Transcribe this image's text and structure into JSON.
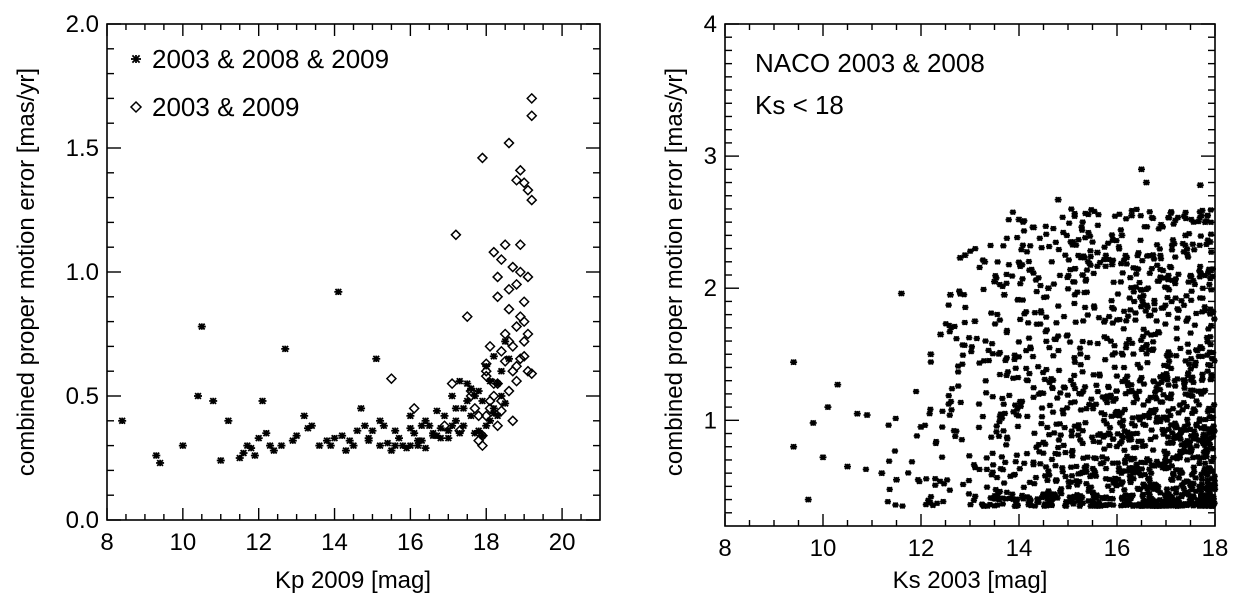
{
  "chart_data": [
    {
      "type": "scatter",
      "xlabel": "Kp 2009 [mag]",
      "ylabel": "combined proper motion error [mas/yr]",
      "xlim": [
        8,
        21
      ],
      "ylim": [
        0,
        2
      ],
      "xticks": [
        "8",
        "10",
        "12",
        "14",
        "16",
        "18",
        "20"
      ],
      "yticks": [
        "0.0",
        "0.5",
        "1.0",
        "1.5",
        "2.0"
      ],
      "legend": [
        "2003 & 2008 & 2009",
        "2003 & 2009"
      ],
      "legend_position": "top-left",
      "series": [
        {
          "name": "2003 & 2008 & 2009",
          "marker": "asterisk",
          "x": [
            8.4,
            9.3,
            9.4,
            10.0,
            10.4,
            10.5,
            10.8,
            11.0,
            11.2,
            11.6,
            11.7,
            11.9,
            12.1,
            12.2,
            12.4,
            12.6,
            12.7,
            12.9,
            13.2,
            13.4,
            13.6,
            13.8,
            14.1,
            14.2,
            14.4,
            14.5,
            14.7,
            14.8,
            14.9,
            15.0,
            15.1,
            15.2,
            15.3,
            15.4,
            15.6,
            15.7,
            15.9,
            16.0,
            16.1,
            16.2,
            16.3,
            16.4,
            16.5,
            16.6,
            16.7,
            16.8,
            16.9,
            17.0,
            17.1,
            17.2,
            17.3,
            17.4,
            17.5,
            17.6,
            17.7,
            17.8,
            17.9,
            18.0,
            18.1,
            18.2,
            18.3,
            18.4,
            18.5,
            16.0,
            16.4,
            16.8,
            17.2,
            17.5,
            17.8,
            18.0,
            18.2,
            18.4,
            15.5,
            15.8,
            16.2,
            16.6,
            17.0,
            17.4,
            17.7,
            18.1,
            18.3,
            18.5,
            18.6,
            14.3,
            14.6,
            14.9,
            15.2,
            15.6,
            16.0,
            16.3,
            16.7,
            17.1,
            17.3,
            17.6,
            17.9,
            18.2,
            13.0,
            13.3,
            13.9,
            14.0,
            12.3,
            12.0,
            11.5,
            11.8
          ],
          "y": [
            0.4,
            0.26,
            0.23,
            0.3,
            0.5,
            0.78,
            0.48,
            0.24,
            0.4,
            0.27,
            0.3,
            0.26,
            0.48,
            0.35,
            0.28,
            0.3,
            0.69,
            0.32,
            0.42,
            0.38,
            0.3,
            0.32,
            0.92,
            0.34,
            0.32,
            0.3,
            0.45,
            0.38,
            0.33,
            0.36,
            0.65,
            0.4,
            0.38,
            0.31,
            0.3,
            0.33,
            0.29,
            0.3,
            0.35,
            0.3,
            0.32,
            0.29,
            0.38,
            0.35,
            0.34,
            0.37,
            0.42,
            0.33,
            0.38,
            0.4,
            0.35,
            0.45,
            0.55,
            0.42,
            0.5,
            0.36,
            0.48,
            0.62,
            0.4,
            0.45,
            0.55,
            0.6,
            0.72,
            0.37,
            0.4,
            0.33,
            0.45,
            0.48,
            0.52,
            0.38,
            0.43,
            0.5,
            0.28,
            0.3,
            0.32,
            0.34,
            0.36,
            0.38,
            0.35,
            0.56,
            0.42,
            0.47,
            0.65,
            0.28,
            0.36,
            0.32,
            0.3,
            0.36,
            0.42,
            0.38,
            0.44,
            0.5,
            0.56,
            0.53,
            0.34,
            0.66,
            0.34,
            0.37,
            0.3,
            0.33,
            0.3,
            0.33,
            0.25,
            0.29
          ]
        },
        {
          "name": "2003 & 2009",
          "marker": "diamond",
          "x": [
            15.5,
            16.1,
            16.9,
            17.1,
            17.2,
            17.3,
            17.5,
            17.6,
            17.7,
            17.8,
            17.9,
            17.9,
            18.0,
            18.0,
            18.1,
            18.1,
            18.2,
            18.2,
            18.3,
            18.3,
            18.4,
            18.4,
            18.5,
            18.5,
            18.6,
            18.6,
            18.6,
            18.7,
            18.7,
            18.7,
            18.8,
            18.8,
            18.8,
            18.9,
            18.9,
            18.9,
            19.0,
            19.0,
            19.0,
            19.1,
            19.1,
            19.1,
            19.2,
            19.2,
            19.2,
            18.0,
            18.2,
            18.4,
            18.6,
            18.8,
            19.0,
            17.9,
            18.1,
            18.3,
            18.5,
            18.7,
            18.9,
            19.1,
            17.8,
            18.3,
            18.6,
            18.9,
            19.2,
            17.6,
            18.0,
            18.4,
            18.8,
            19.0
          ],
          "y": [
            0.57,
            0.45,
            0.38,
            0.55,
            1.15,
            0.36,
            0.82,
            0.5,
            0.45,
            0.32,
            0.34,
            1.46,
            0.42,
            0.63,
            0.7,
            0.45,
            1.08,
            0.55,
            0.9,
            0.38,
            1.05,
            0.48,
            0.75,
            1.11,
            0.52,
            1.52,
            0.85,
            0.6,
            1.02,
            0.4,
            0.78,
            1.37,
            0.95,
            0.65,
            1.41,
            1.11,
            0.88,
            1.36,
            0.72,
            1.33,
            0.98,
            0.6,
            1.29,
            1.7,
            1.63,
            0.58,
            0.5,
            0.68,
            0.72,
            0.62,
            0.8,
            0.3,
            0.48,
            0.55,
            0.64,
            0.7,
            0.82,
            0.75,
            0.42,
            0.98,
            0.93,
            1.0,
            0.59,
            0.52,
            0.6,
            0.44,
            0.56,
            0.66
          ]
        }
      ]
    },
    {
      "type": "scatter",
      "annotations": [
        "NACO 2003 & 2008",
        "Ks < 18"
      ],
      "xlabel": "Ks 2003 [mag]",
      "ylabel": "combined proper motion error [mas/yr]",
      "xlim": [
        8,
        18
      ],
      "ylim": [
        0.2,
        4
      ],
      "xticks": [
        "8",
        "10",
        "12",
        "14",
        "16",
        "18"
      ],
      "yticks": [
        "1",
        "2",
        "3",
        "4"
      ],
      "series": [
        {
          "marker": "asterisk",
          "count": 1800,
          "x": [
            9.4,
            9.4,
            9.7,
            9.8,
            10.0,
            10.1,
            10.3,
            10.5,
            10.7,
            10.9,
            11.2,
            11.5,
            11.6,
            12.0,
            12.2,
            12.4,
            12.6,
            12.8,
            12.9,
            13.1,
            13.3,
            13.5,
            13.7,
            14.0,
            14.3,
            14.6,
            14.8,
            15.1,
            15.3,
            15.6,
            15.9,
            16.1,
            16.3,
            16.5,
            16.6,
            16.9,
            17.1,
            17.4,
            17.7,
            17.8,
            17.9
          ],
          "y": [
            1.44,
            0.8,
            0.4,
            0.98,
            0.72,
            1.1,
            1.27,
            0.65,
            1.05,
            1.04,
            0.6,
            0.55,
            1.96,
            0.95,
            1.5,
            1.65,
            1.95,
            2.23,
            2.25,
            1.75,
            2.2,
            2.05,
            1.95,
            2.52,
            2.46,
            2.0,
            2.67,
            2.35,
            2.1,
            2.27,
            2.18,
            2.4,
            2.55,
            2.9,
            2.8,
            2.48,
            2.57,
            2.4,
            2.78,
            2.5,
            2.35
          ]
        }
      ]
    }
  ]
}
